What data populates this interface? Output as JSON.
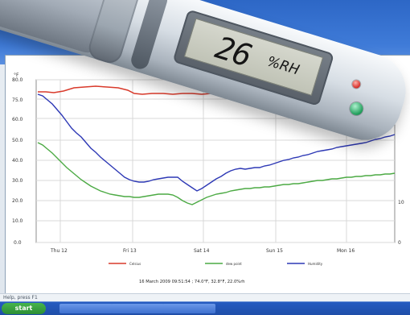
{
  "device": {
    "display_value": "26",
    "display_unit": "%RH"
  },
  "chart_data": {
    "type": "line",
    "title": "",
    "xlabel": "",
    "ylabel": "°F",
    "yticks": [
      "80.0",
      "75.0",
      "60.0",
      "50.0",
      "40.0",
      "30.0",
      "20.0",
      "10.0",
      "0.0"
    ],
    "xticks": [
      "Thu 12",
      "Fri 13",
      "Sat 14",
      "Sun 15",
      "Mon 16"
    ],
    "right_ticks": [
      "10",
      "0"
    ],
    "grid": true,
    "series": [
      {
        "name": "Celsius",
        "color": "#d93a2b"
      },
      {
        "name": "dew point",
        "color": "#4caa44"
      },
      {
        "name": "Humidity",
        "color": "#2d38b5"
      }
    ],
    "info": "16 March 2009 09:51:54 ; 74.0°F, 32.8°F, 22.0%rh"
  },
  "status_bar": {
    "text": "Help, press F1"
  },
  "taskbar": {
    "start": "start",
    "tasks": [
      "",
      "",
      ""
    ]
  }
}
